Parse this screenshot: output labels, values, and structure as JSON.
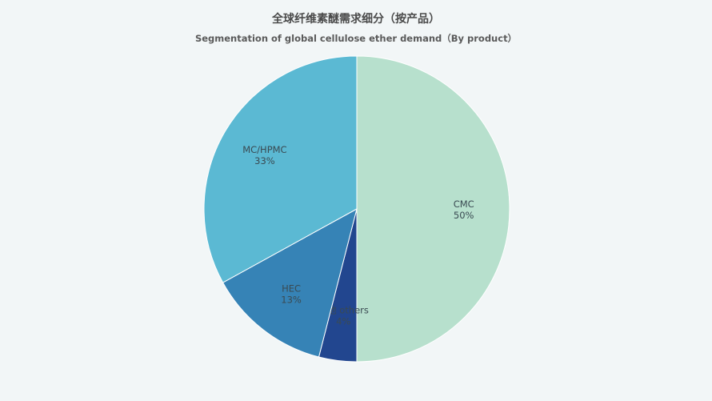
{
  "chart_data": {
    "type": "pie",
    "title": "全球纤维素醚需求细分（按产品）",
    "subtitle": "Segmentation of global cellulose ether demand（By product）",
    "slices": [
      {
        "label": "CMC",
        "value": 50,
        "value_label": "50%",
        "color": "#b7e0cd"
      },
      {
        "label": "其他 others",
        "value": 4,
        "value_label": "4%",
        "color": "#22468f"
      },
      {
        "label": "HEC",
        "value": 13,
        "value_label": "13%",
        "color": "#3683b6"
      },
      {
        "label": "MC/HPMC",
        "value": 33,
        "value_label": "33%",
        "color": "#5bb9d3"
      }
    ],
    "start_angle": "12 o'clock",
    "direction": "clockwise",
    "legend": "none"
  }
}
